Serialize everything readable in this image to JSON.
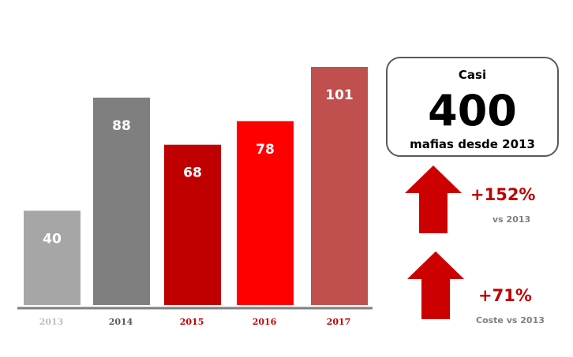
{
  "chart_data": {
    "type": "bar",
    "categories": [
      "2013",
      "2014",
      "2015",
      "2016",
      "2017"
    ],
    "values": [
      40,
      88,
      68,
      78,
      101
    ],
    "data_labels": [
      "40",
      "88",
      "68",
      "78",
      "101"
    ],
    "bar_colors": [
      "#a6a6a6",
      "#7f7f7f",
      "#c00000",
      "#ff0000",
      "#c0504d"
    ],
    "tick_colors": [
      "#bfbfbf",
      "#595959",
      "#c00000",
      "#c00000",
      "#c00000"
    ],
    "axis_color": "#7f7f7f",
    "ylim": [
      0,
      101
    ],
    "grid": false,
    "legend": "none"
  },
  "callout": {
    "pre": "Casi",
    "value": "400",
    "post": "mafias desde 2013"
  },
  "stats": [
    {
      "value": "+152%",
      "note": "vs 2013",
      "color": "#c00000"
    },
    {
      "value": "+71%",
      "note": "Coste vs 2013",
      "color": "#c00000"
    }
  ]
}
